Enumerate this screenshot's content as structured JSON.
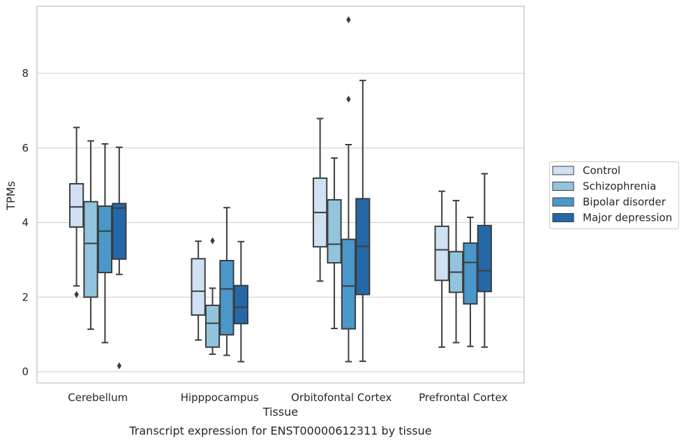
{
  "chart_data": {
    "type": "box",
    "xlabel": "Tissue",
    "ylabel": "TPMs",
    "caption": "Transcript expression for ENST00000612311 by tissue",
    "ylim": [
      -0.3,
      9.8
    ],
    "yticks": [
      0,
      2,
      4,
      6,
      8
    ],
    "grid": "horizontal",
    "legend_position": "right",
    "categories": [
      "Cerebellum",
      "Hipppocampus",
      "Orbitofontal Cortex",
      "Prefrontal Cortex"
    ],
    "series": [
      {
        "name": "Control",
        "color": "#cfe1f2",
        "boxes": [
          {
            "whisker_low": 2.3,
            "q1": 3.88,
            "median": 4.42,
            "q3": 5.04,
            "whisker_high": 6.55,
            "outliers": [
              2.07
            ]
          },
          {
            "whisker_low": 0.85,
            "q1": 1.52,
            "median": 2.16,
            "q3": 3.03,
            "whisker_high": 3.5,
            "outliers": []
          },
          {
            "whisker_low": 2.43,
            "q1": 3.35,
            "median": 4.27,
            "q3": 5.19,
            "whisker_high": 6.79,
            "outliers": []
          },
          {
            "whisker_low": 0.66,
            "q1": 2.45,
            "median": 3.27,
            "q3": 3.9,
            "whisker_high": 4.84,
            "outliers": []
          }
        ]
      },
      {
        "name": "Schizophrenia",
        "color": "#93c4de",
        "boxes": [
          {
            "whisker_low": 1.14,
            "q1": 2.0,
            "median": 3.44,
            "q3": 4.56,
            "whisker_high": 6.19,
            "outliers": []
          },
          {
            "whisker_low": 0.47,
            "q1": 0.66,
            "median": 1.3,
            "q3": 1.78,
            "whisker_high": 2.24,
            "outliers": [
              3.51
            ]
          },
          {
            "whisker_low": 1.16,
            "q1": 2.92,
            "median": 3.42,
            "q3": 4.61,
            "whisker_high": 5.73,
            "outliers": []
          },
          {
            "whisker_low": 0.78,
            "q1": 2.13,
            "median": 2.67,
            "q3": 3.22,
            "whisker_high": 4.59,
            "outliers": []
          }
        ]
      },
      {
        "name": "Bipolar disorder",
        "color": "#4a98c9",
        "boxes": [
          {
            "whisker_low": 0.78,
            "q1": 2.66,
            "median": 3.77,
            "q3": 4.44,
            "whisker_high": 6.11,
            "outliers": []
          },
          {
            "whisker_low": 0.44,
            "q1": 0.99,
            "median": 2.22,
            "q3": 2.98,
            "whisker_high": 4.4,
            "outliers": []
          },
          {
            "whisker_low": 0.27,
            "q1": 1.15,
            "median": 2.3,
            "q3": 3.55,
            "whisker_high": 6.09,
            "outliers": [
              7.31,
              9.44
            ]
          },
          {
            "whisker_low": 0.68,
            "q1": 1.82,
            "median": 2.93,
            "q3": 3.45,
            "whisker_high": 4.14,
            "outliers": []
          }
        ]
      },
      {
        "name": "Major depression",
        "color": "#2468a8",
        "boxes": [
          {
            "whisker_low": 2.61,
            "q1": 3.02,
            "median": 4.39,
            "q3": 4.51,
            "whisker_high": 6.02,
            "outliers": [
              0.16
            ]
          },
          {
            "whisker_low": 0.27,
            "q1": 1.29,
            "median": 1.73,
            "q3": 2.31,
            "whisker_high": 3.49,
            "outliers": []
          },
          {
            "whisker_low": 0.28,
            "q1": 2.07,
            "median": 3.36,
            "q3": 4.64,
            "whisker_high": 7.81,
            "outliers": []
          },
          {
            "whisker_low": 0.66,
            "q1": 2.15,
            "median": 2.71,
            "q3": 3.92,
            "whisker_high": 5.31,
            "outliers": []
          }
        ]
      }
    ]
  }
}
